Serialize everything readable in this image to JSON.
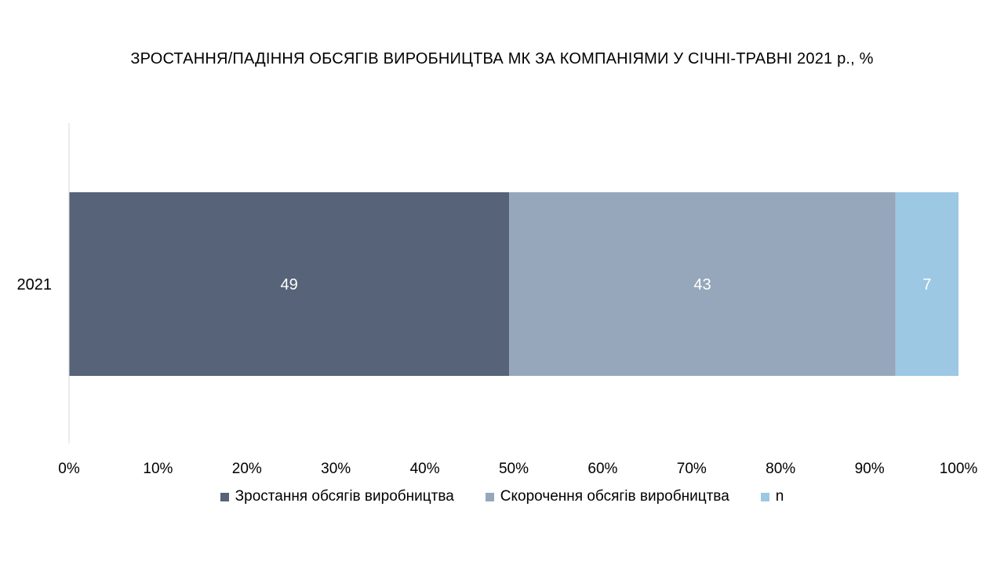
{
  "chart_data": {
    "type": "bar",
    "orientation": "horizontal",
    "stacked": true,
    "percent_stacked": true,
    "title": "ЗРОСТАННЯ/ПАДІННЯ ОБСЯГІВ ВИРОБНИЦТВА МК ЗА КОМПАНІЯМИ У СІЧНІ-ТРАВНІ 2021 р., %",
    "categories": [
      "2021"
    ],
    "series": [
      {
        "name": "Зростання обсягів виробництва",
        "values": [
          49
        ],
        "labels": [
          "49"
        ],
        "color": "#566378"
      },
      {
        "name": "Скорочення обсягів виробництва",
        "values": [
          43
        ],
        "labels": [
          "43"
        ],
        "color": "#96a7bb"
      },
      {
        "name": "n",
        "values": [
          7
        ],
        "labels": [
          "7"
        ],
        "color": "#9dc8e4"
      }
    ],
    "xlim": [
      0,
      100
    ],
    "xticks": [
      "0%",
      "10%",
      "20%",
      "30%",
      "40%",
      "50%",
      "60%",
      "70%",
      "80%",
      "90%",
      "100%"
    ],
    "grid": false,
    "legend_position": "bottom"
  }
}
